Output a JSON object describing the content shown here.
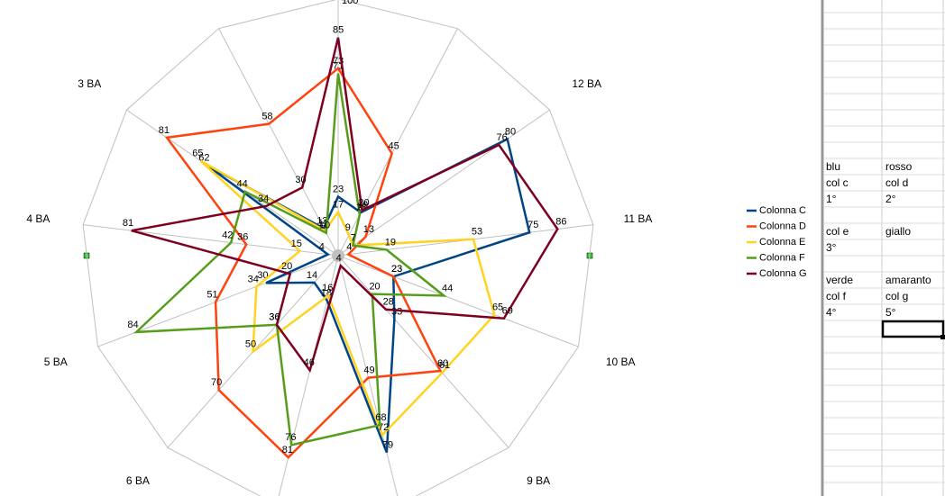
{
  "chart_data": {
    "type": "radar",
    "categories": [
      null,
      null,
      "12 BA",
      "11 BA",
      "10 BA",
      "9 BA",
      null,
      null,
      "6 BA",
      "5 BA",
      "4 BA",
      "3 BA",
      null
    ],
    "ylim": [
      0,
      100
    ],
    "yticks": [
      100
    ],
    "legend": "right",
    "series": [
      {
        "name": "Colonna C",
        "color": "#004586",
        "values": [
          23,
          19,
          80,
          75,
          23,
          33,
          79,
          18,
          14,
          30,
          4,
          62,
          12
        ]
      },
      {
        "name": "Colonna D",
        "color": "#ff420e",
        "values": [
          73,
          45,
          13,
          4,
          23,
          60,
          49,
          81,
          70,
          51,
          36,
          81,
          58
        ]
      },
      {
        "name": "Colonna E",
        "color": "#ffd320",
        "values": [
          17,
          9,
          7,
          53,
          65,
          61,
          72,
          16,
          50,
          34,
          15,
          65,
          11
        ]
      },
      {
        "name": "Colonna F",
        "color": "#579d1c",
        "values": [
          71,
          18,
          7,
          19,
          44,
          20,
          68,
          76,
          36,
          84,
          42,
          44,
          10
        ]
      },
      {
        "name": "Colonna G",
        "color": "#7e0021",
        "values": [
          85,
          20,
          76,
          86,
          69,
          28,
          4,
          46,
          36,
          20,
          81,
          34,
          30
        ]
      }
    ]
  },
  "sheet": {
    "blocks": [
      [
        [
          "blu",
          "rosso"
        ],
        [
          "col c",
          "col d"
        ],
        [
          "1°",
          "2°"
        ]
      ],
      [
        [
          "col e",
          "giallo"
        ],
        [
          "3°"
        ]
      ],
      [
        [
          "verde",
          "amaranto"
        ],
        [
          "col f",
          "col g"
        ],
        [
          "4°",
          "5°"
        ]
      ]
    ]
  }
}
